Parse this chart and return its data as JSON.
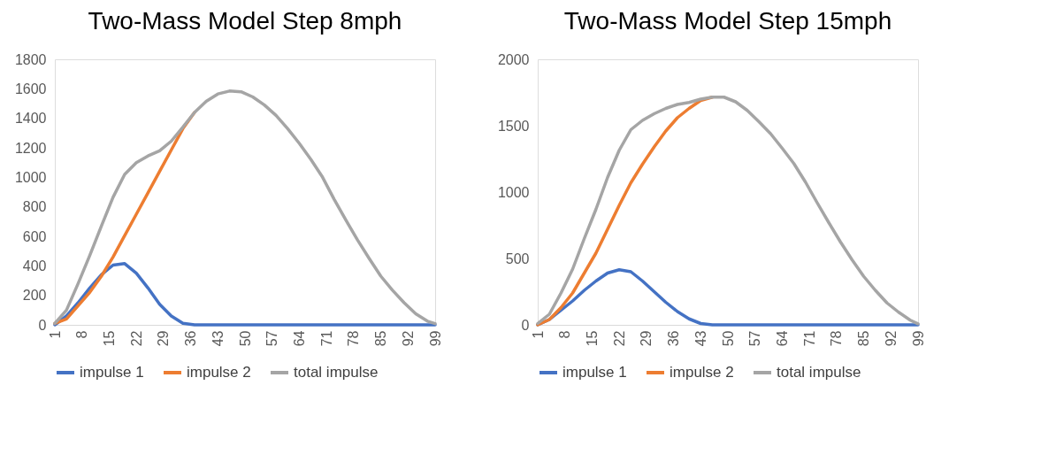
{
  "chart_data": [
    {
      "type": "line",
      "title": "Two-Mass Model Step 8mph",
      "x": [
        1,
        4,
        7,
        10,
        13,
        16,
        19,
        22,
        25,
        28,
        31,
        34,
        37,
        40,
        43,
        46,
        49,
        52,
        55,
        58,
        61,
        64,
        67,
        70,
        73,
        76,
        79,
        82,
        85,
        88,
        91,
        94,
        97,
        99
      ],
      "xlim": [
        1,
        99
      ],
      "xticks": [
        1,
        8,
        15,
        22,
        29,
        36,
        43,
        50,
        57,
        64,
        71,
        78,
        85,
        92,
        99
      ],
      "ylim": [
        0,
        1800
      ],
      "yticks": [
        0,
        200,
        400,
        600,
        800,
        1000,
        1200,
        1400,
        1600,
        1800
      ],
      "grid": false,
      "legend": "bottom",
      "marker": "none",
      "line_style": "solid",
      "series": [
        {
          "name": "impulse 1",
          "color": "#4472c4",
          "values": [
            0,
            60,
            150,
            250,
            340,
            405,
            415,
            350,
            250,
            140,
            60,
            10,
            0,
            0,
            0,
            0,
            0,
            0,
            0,
            0,
            0,
            0,
            0,
            0,
            0,
            0,
            0,
            0,
            0,
            0,
            0,
            0,
            0,
            0
          ]
        },
        {
          "name": "impulse 2",
          "color": "#ed7d31",
          "values": [
            10,
            40,
            130,
            220,
            330,
            460,
            605,
            750,
            895,
            1040,
            1185,
            1330,
            1440,
            null,
            null,
            null,
            null,
            null,
            null,
            null,
            null,
            null,
            null,
            null,
            null,
            null,
            null,
            null,
            null,
            null,
            null,
            null,
            null,
            null
          ]
        },
        {
          "name": "total impulse",
          "color": "#a5a5a5",
          "values": [
            10,
            100,
            280,
            470,
            670,
            865,
            1020,
            1100,
            1145,
            1180,
            1245,
            1340,
            1440,
            1515,
            1565,
            1585,
            1580,
            1545,
            1490,
            1420,
            1330,
            1230,
            1120,
            1000,
            850,
            710,
            575,
            450,
            330,
            235,
            150,
            75,
            25,
            8
          ]
        }
      ]
    },
    {
      "type": "line",
      "title": "Two-Mass Model Step 15mph",
      "x": [
        1,
        4,
        7,
        10,
        13,
        16,
        19,
        22,
        25,
        28,
        31,
        34,
        37,
        40,
        43,
        46,
        49,
        52,
        55,
        58,
        61,
        64,
        67,
        70,
        73,
        76,
        79,
        82,
        85,
        88,
        91,
        94,
        97,
        99
      ],
      "xlim": [
        1,
        99
      ],
      "xticks": [
        1,
        8,
        15,
        22,
        29,
        36,
        43,
        50,
        57,
        64,
        71,
        78,
        85,
        92,
        99
      ],
      "ylim": [
        0,
        2000
      ],
      "yticks": [
        0,
        500,
        1000,
        1500,
        2000
      ],
      "grid": false,
      "legend": "bottom",
      "marker": "none",
      "line_style": "solid",
      "series": [
        {
          "name": "impulse 1",
          "color": "#4472c4",
          "values": [
            0,
            40,
            110,
            180,
            260,
            330,
            390,
            415,
            400,
            330,
            250,
            170,
            100,
            45,
            10,
            0,
            0,
            0,
            0,
            0,
            0,
            0,
            0,
            0,
            0,
            0,
            0,
            0,
            0,
            0,
            0,
            0,
            0,
            0
          ]
        },
        {
          "name": "impulse 2",
          "color": "#ed7d31",
          "values": [
            0,
            40,
            130,
            240,
            390,
            540,
            720,
            900,
            1070,
            1210,
            1340,
            1460,
            1560,
            1630,
            1690,
            1715,
            null,
            null,
            null,
            null,
            null,
            null,
            null,
            null,
            null,
            null,
            null,
            null,
            null,
            null,
            null,
            null,
            null,
            null
          ]
        },
        {
          "name": "total impulse",
          "color": "#a5a5a5",
          "values": [
            10,
            80,
            240,
            420,
            650,
            870,
            1110,
            1315,
            1470,
            1540,
            1590,
            1630,
            1660,
            1675,
            1700,
            1715,
            1715,
            1680,
            1615,
            1530,
            1440,
            1330,
            1215,
            1075,
            920,
            770,
            625,
            490,
            365,
            260,
            165,
            95,
            35,
            8
          ]
        }
      ]
    }
  ]
}
